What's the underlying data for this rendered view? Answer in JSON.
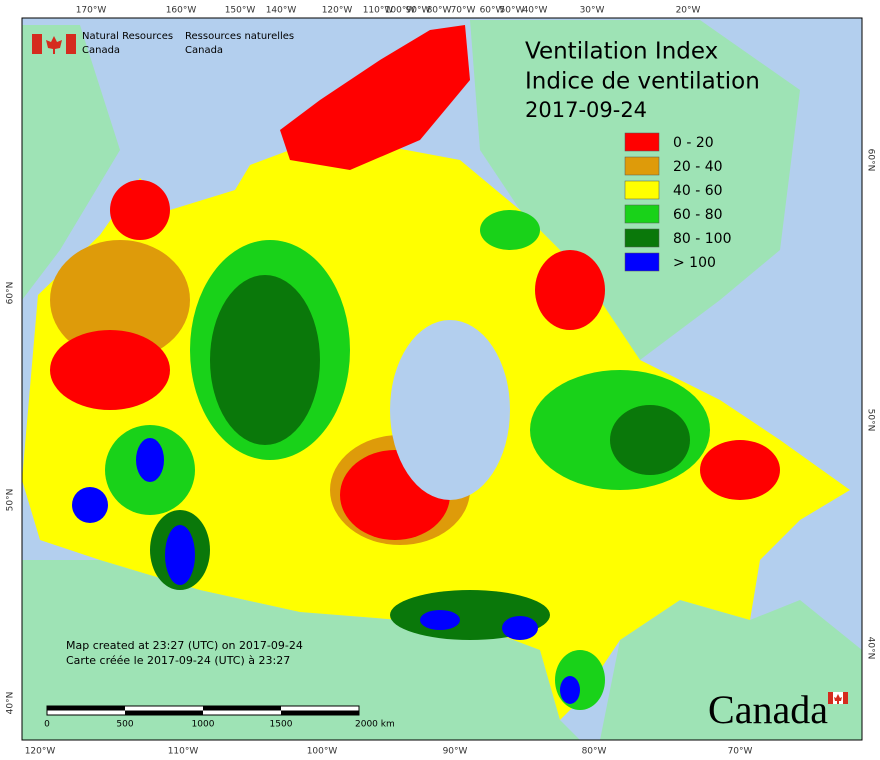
{
  "header": {
    "agency_en": [
      "Natural Resources",
      "Canada"
    ],
    "agency_fr": [
      "Ressources naturelles",
      "Canada"
    ]
  },
  "title": [
    "Ventilation Index",
    "Indice de ventilation",
    "2017-09-24"
  ],
  "legend": [
    {
      "label": "0 - 20",
      "color": "#ff0000"
    },
    {
      "label": "20 - 40",
      "color": "#de9b0a"
    },
    {
      "label": "40 - 60",
      "color": "#ffff00"
    },
    {
      "label": "60 - 80",
      "color": "#19d219"
    },
    {
      "label": "80 - 100",
      "color": "#0a780a"
    },
    {
      "label": "> 100",
      "color": "#0000ff"
    }
  ],
  "graticule": {
    "top": [
      "170°W",
      "160°W",
      "150°W",
      "140°W",
      "120°W",
      "110°W",
      "100°W",
      "90°W",
      "80°W",
      "70°W",
      "60°W",
      "50°W",
      "40°W",
      "30°W",
      "20°W"
    ],
    "bottom": [
      "120°W",
      "110°W",
      "100°W",
      "90°W",
      "80°W",
      "70°W"
    ],
    "left": [
      "60°N",
      "50°N",
      "40°N"
    ],
    "right": [
      "60°N",
      "50°N",
      "40°N"
    ]
  },
  "scale_bar": [
    "0",
    "500",
    "1000",
    "1500",
    "2000 km"
  ],
  "credits": [
    "Map created at 23:27 (UTC) on 2017-09-24",
    "Carte créée le 2017-09-24 (UTC) à 23:27"
  ],
  "wordmark": "Canada"
}
